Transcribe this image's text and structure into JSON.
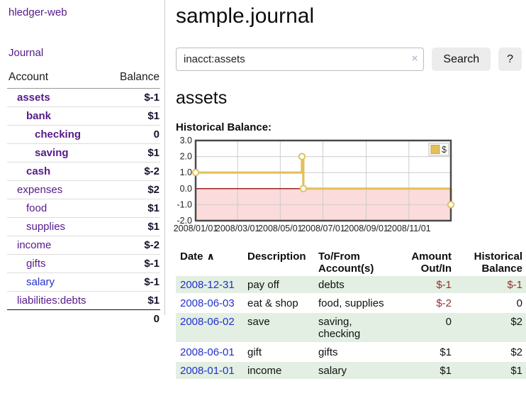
{
  "app": {
    "title": "hledger-web"
  },
  "sidebar": {
    "journal_label": "Journal",
    "accounts": {
      "header_account": "Account",
      "header_balance": "Balance",
      "rows": [
        {
          "name": "assets",
          "balance": "$-1"
        },
        {
          "name": "bank",
          "balance": "$1"
        },
        {
          "name": "checking",
          "balance": "0"
        },
        {
          "name": "saving",
          "balance": "$1"
        },
        {
          "name": "cash",
          "balance": "$-2"
        },
        {
          "name": "expenses",
          "balance": "$2"
        },
        {
          "name": "food",
          "balance": "$1"
        },
        {
          "name": "supplies",
          "balance": "$1"
        },
        {
          "name": "income",
          "balance": "$-2"
        },
        {
          "name": "gifts",
          "balance": "$-1"
        },
        {
          "name": "salary",
          "balance": "$-1"
        },
        {
          "name": "liabilities:debts",
          "balance": "$1"
        }
      ],
      "total": "0"
    }
  },
  "main": {
    "title": "sample.journal",
    "search": {
      "value": "inacct:assets",
      "clear_label": "×",
      "button_label": "Search",
      "help_label": "?"
    },
    "account_heading": "assets"
  },
  "chart_data": {
    "type": "line",
    "title": "Historical Balance:",
    "legend": [
      "$"
    ],
    "legend_position": "top-right",
    "grid": true,
    "ylim": [
      -2,
      3
    ],
    "x_range_days": [
      0,
      365
    ],
    "y_ticks": [
      {
        "value": 3,
        "label": "3.0"
      },
      {
        "value": 2,
        "label": "2.0"
      },
      {
        "value": 1,
        "label": "1.0"
      },
      {
        "value": 0,
        "label": "0.0"
      },
      {
        "value": -1,
        "label": "-1.0"
      },
      {
        "value": -2,
        "label": "-2.0"
      }
    ],
    "x_ticks": [
      {
        "day": 0,
        "label": "2008/01/01"
      },
      {
        "day": 60,
        "label": "2008/03/01"
      },
      {
        "day": 121,
        "label": "2008/05/01"
      },
      {
        "day": 182,
        "label": "2008/07/01"
      },
      {
        "day": 244,
        "label": "2008/09/01"
      },
      {
        "day": 305,
        "label": "2008/11/01"
      }
    ],
    "series": [
      {
        "name": "$",
        "color": "#E4C05A",
        "marker_fill": "#ffffff",
        "step": "after",
        "points": [
          {
            "date": "2008-01-01",
            "day": 0,
            "value": 1.0
          },
          {
            "date": "2008-06-01",
            "day": 152,
            "value": 2.0
          },
          {
            "date": "2008-06-03",
            "day": 154,
            "value": 0.0
          },
          {
            "date": "2008-12-31",
            "day": 365,
            "value": -1.0
          }
        ]
      }
    ],
    "negative_region_fill": "#FBDBDB",
    "zero_line_color": "#9C0B0B",
    "grid_color": "#cccccc",
    "border_color": "#4a4a4a"
  },
  "register": {
    "headers": [
      "Date",
      "Description",
      "To/From Account(s)",
      "Amount Out/In",
      "Historical Balance"
    ],
    "sort_icon": "∧",
    "rows": [
      {
        "date": "2008-12-31",
        "description": "pay off",
        "accounts": "debts",
        "amount": "$-1",
        "balance": "$-1"
      },
      {
        "date": "2008-06-03",
        "description": "eat & shop",
        "accounts": "food, supplies",
        "amount": "$-2",
        "balance": "0"
      },
      {
        "date": "2008-06-02",
        "description": "save",
        "accounts": "saving, checking",
        "amount": "0",
        "balance": "$2"
      },
      {
        "date": "2008-06-01",
        "description": "gift",
        "accounts": "gifts",
        "amount": "$1",
        "balance": "$2"
      },
      {
        "date": "2008-01-01",
        "description": "income",
        "accounts": "salary",
        "amount": "$1",
        "balance": "$1"
      }
    ]
  }
}
